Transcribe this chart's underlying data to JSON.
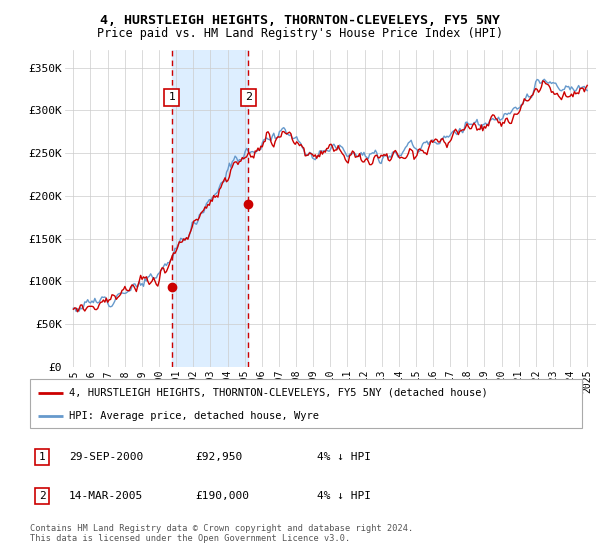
{
  "title": "4, HURSTLEIGH HEIGHTS, THORNTON-CLEVELEYS, FY5 5NY",
  "subtitle": "Price paid vs. HM Land Registry's House Price Index (HPI)",
  "legend_line1": "4, HURSTLEIGH HEIGHTS, THORNTON-CLEVELEYS, FY5 5NY (detached house)",
  "legend_line2": "HPI: Average price, detached house, Wyre",
  "sale1_date": "29-SEP-2000",
  "sale1_price": "£92,950",
  "sale1_hpi": "4% ↓ HPI",
  "sale2_date": "14-MAR-2005",
  "sale2_price": "£190,000",
  "sale2_hpi": "4% ↓ HPI",
  "footer": "Contains HM Land Registry data © Crown copyright and database right 2024.\nThis data is licensed under the Open Government Licence v3.0.",
  "red_color": "#cc0000",
  "blue_color": "#6699cc",
  "bg_color": "#ffffff",
  "grid_color": "#cccccc",
  "highlight_bg": "#ddeeff",
  "sale1_year": 2000.75,
  "sale1_price_val": 92950,
  "sale2_year": 2005.21,
  "sale2_price_val": 190000,
  "ylim": [
    0,
    370000
  ],
  "yticks": [
    0,
    50000,
    100000,
    150000,
    200000,
    250000,
    300000,
    350000
  ],
  "ytick_labels": [
    "£0",
    "£50K",
    "£100K",
    "£150K",
    "£200K",
    "£250K",
    "£300K",
    "£350K"
  ],
  "xlim_min": 1994.5,
  "xlim_max": 2025.5
}
